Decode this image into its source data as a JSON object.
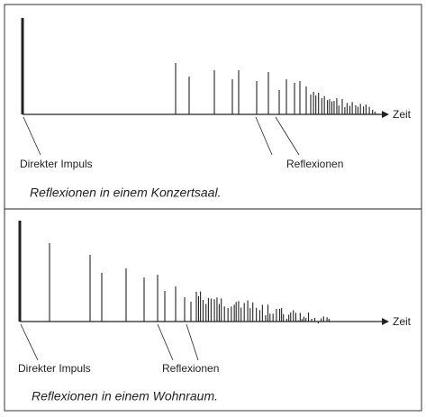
{
  "panels": [
    {
      "axis_label": "Zeit",
      "direct_label": "Direkter Impuls",
      "reflections_label": "Reflexionen",
      "caption": "Reflexionen in einem Konzertsaal."
    },
    {
      "axis_label": "Zeit",
      "direct_label": "Direkter Impuls",
      "reflections_label": "Reflexionen",
      "caption": "Reflexionen in einem Wohnraum."
    }
  ]
}
